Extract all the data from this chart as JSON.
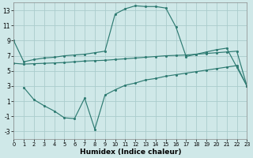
{
  "xlabel": "Humidex (Indice chaleur)",
  "xlim": [
    0,
    23
  ],
  "ylim": [
    -4,
    14
  ],
  "yticks": [
    -3,
    -1,
    1,
    3,
    5,
    7,
    9,
    11,
    13
  ],
  "xticks": [
    0,
    1,
    2,
    3,
    4,
    5,
    6,
    7,
    8,
    9,
    10,
    11,
    12,
    13,
    14,
    15,
    16,
    17,
    18,
    19,
    20,
    21,
    22,
    23
  ],
  "background_color": "#cfe8e8",
  "grid_color": "#aacccc",
  "line_color": "#2e7b72",
  "line1_x": [
    0,
    1,
    2,
    3,
    4,
    5,
    6,
    7,
    8,
    9,
    10,
    11,
    12,
    13,
    14,
    15,
    16,
    17,
    18,
    19,
    20,
    21,
    22,
    23
  ],
  "line1_y": [
    9.0,
    6.2,
    6.5,
    6.7,
    6.8,
    7.0,
    7.1,
    7.2,
    7.4,
    7.6,
    12.5,
    13.2,
    13.6,
    13.5,
    13.5,
    13.3,
    10.8,
    6.9,
    7.2,
    7.5,
    7.8,
    8.0,
    5.5,
    3.0
  ],
  "line2_x": [
    0,
    1,
    2,
    3,
    4,
    5,
    6,
    7,
    8,
    9,
    10,
    11,
    12,
    13,
    14,
    15,
    16,
    17,
    18,
    19,
    20,
    21,
    22,
    23
  ],
  "line2_y": [
    6.0,
    5.9,
    5.95,
    6.0,
    6.05,
    6.1,
    6.2,
    6.3,
    6.35,
    6.4,
    6.5,
    6.6,
    6.7,
    6.8,
    6.9,
    7.0,
    7.05,
    7.1,
    7.2,
    7.3,
    7.4,
    7.5,
    7.6,
    3.0
  ],
  "line3_x": [
    1,
    2,
    3,
    4,
    5,
    6,
    7,
    8,
    9,
    10,
    11,
    12,
    13,
    14,
    15,
    16,
    17,
    18,
    19,
    20,
    21,
    22,
    23
  ],
  "line3_y": [
    2.8,
    1.2,
    0.4,
    -0.3,
    -1.2,
    -1.3,
    1.4,
    -2.7,
    1.8,
    2.5,
    3.1,
    3.4,
    3.8,
    4.0,
    4.3,
    4.5,
    4.7,
    4.9,
    5.1,
    5.3,
    5.5,
    5.7,
    3.0
  ]
}
